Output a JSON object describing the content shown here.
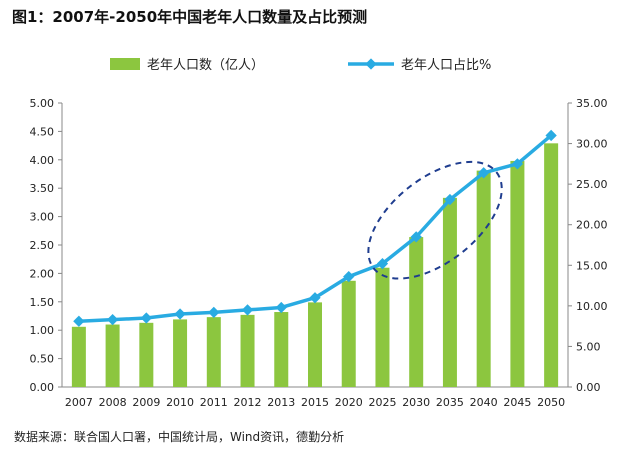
{
  "title": "图1：2007年-2050年中国老年人口数量及占比预测",
  "source": "数据来源：联合国人口署，中国统计局，Wind资讯，德勤分析",
  "colors": {
    "bar": "#8cc63f",
    "line": "#29abe2",
    "ellipse": "#1f3d8f",
    "axis": "#888888"
  },
  "chart_data": {
    "type": "bar+line",
    "title": "图1：2007年-2050年中国老年人口数量及占比预测",
    "categories": [
      "2007",
      "2008",
      "2009",
      "2010",
      "2011",
      "2012",
      "2013",
      "2015",
      "2020",
      "2025",
      "2030",
      "2035",
      "2040",
      "2045",
      "2050"
    ],
    "series": [
      {
        "name": "老年人口数（亿人）",
        "type": "bar",
        "axis": "left",
        "values": [
          1.06,
          1.1,
          1.13,
          1.19,
          1.23,
          1.27,
          1.32,
          1.49,
          1.87,
          2.1,
          2.64,
          3.33,
          3.81,
          3.98,
          4.29
        ]
      },
      {
        "name": "老年人口占比%",
        "type": "line",
        "axis": "right",
        "values": [
          8.1,
          8.3,
          8.5,
          9.0,
          9.2,
          9.5,
          9.8,
          11.0,
          13.6,
          15.2,
          18.5,
          23.1,
          26.4,
          27.5,
          31.0
        ]
      }
    ],
    "y_left": {
      "lim": [
        0,
        5
      ],
      "ticks": [
        "0.00",
        "0.50",
        "1.00",
        "1.50",
        "2.00",
        "2.50",
        "3.00",
        "3.50",
        "4.00",
        "4.50",
        "5.00"
      ]
    },
    "y_right": {
      "lim": [
        0,
        35
      ],
      "ticks": [
        "0.00",
        "5.00",
        "10.00",
        "15.00",
        "20.00",
        "25.00",
        "30.00",
        "35.00"
      ]
    },
    "legend": "top",
    "grid": false,
    "annotation": "dashed ellipse around 2025-2040"
  }
}
